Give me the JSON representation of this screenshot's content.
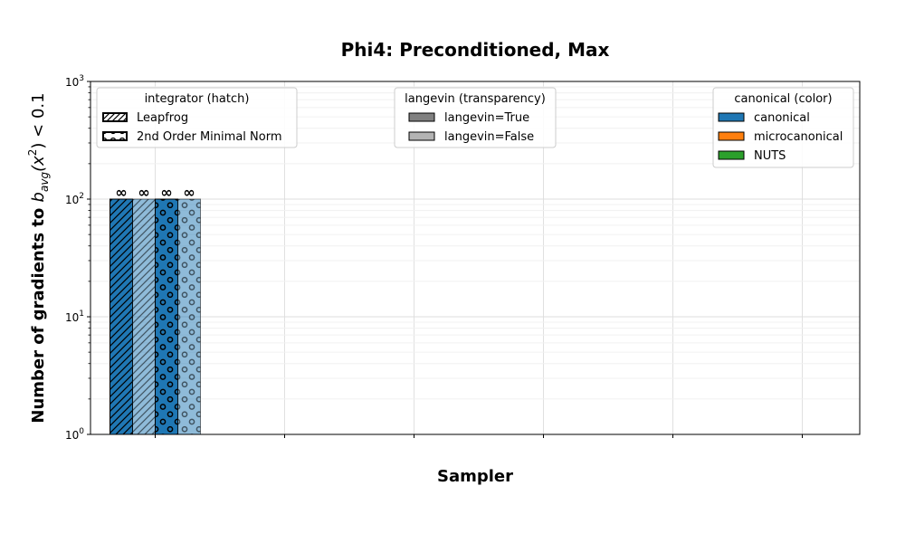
{
  "chart_data": {
    "type": "bar",
    "title": "Phi4: Preconditioned, Max",
    "xlabel": "Sampler",
    "ylabel": "Number of gradients to b_avg(x²) < 0.1",
    "ylabel_parts": {
      "prefix": "Number of gradients to ",
      "b": "b",
      "sub": "avg",
      "open": "(x",
      "sup": "2",
      "close": ") < 0.1"
    },
    "yscale": "log",
    "ylim": [
      1,
      1000
    ],
    "y_ticks": [
      {
        "value": 1,
        "base": "10",
        "exp": "0"
      },
      {
        "value": 10,
        "base": "10",
        "exp": "1"
      },
      {
        "value": 100,
        "base": "10",
        "exp": "2"
      },
      {
        "value": 1000,
        "base": "10",
        "exp": "3"
      }
    ],
    "grid": true,
    "x_tick_count": 6,
    "categories": [
      ""
    ],
    "bars": [
      {
        "category_index": 0,
        "value": 100,
        "integrator": "Leapfrog",
        "langevin": true,
        "canonical": "canonical",
        "label": "∞"
      },
      {
        "category_index": 0,
        "value": 100,
        "integrator": "Leapfrog",
        "langevin": false,
        "canonical": "canonical",
        "label": "∞"
      },
      {
        "category_index": 0,
        "value": 100,
        "integrator": "2nd Order Minimal Norm",
        "langevin": true,
        "canonical": "canonical",
        "label": "∞"
      },
      {
        "category_index": 0,
        "value": 100,
        "integrator": "2nd Order Minimal Norm",
        "langevin": false,
        "canonical": "canonical",
        "label": "∞"
      }
    ],
    "legends": {
      "integrator": {
        "title": "integrator (hatch)",
        "placement": "top-left",
        "entries": [
          {
            "label": "Leapfrog",
            "hatch": "diagonal"
          },
          {
            "label": "2nd Order Minimal Norm",
            "hatch": "circles"
          }
        ]
      },
      "langevin": {
        "title": "langevin (transparency)",
        "placement": "top-center",
        "entries": [
          {
            "label": "langevin=True",
            "color": "#808080"
          },
          {
            "label": "langevin=False",
            "color": "#b3b3b3"
          }
        ]
      },
      "canonical": {
        "title": "canonical (color)",
        "placement": "top-right",
        "entries": [
          {
            "label": "canonical",
            "color": "#1f77b4"
          },
          {
            "label": "microcanonical",
            "color": "#ff7f0e"
          },
          {
            "label": "NUTS",
            "color": "#2ca02c"
          }
        ]
      }
    },
    "colors": {
      "canonical": "#1f77b4",
      "microcanonical": "#ff7f0e",
      "NUTS": "#2ca02c"
    }
  }
}
